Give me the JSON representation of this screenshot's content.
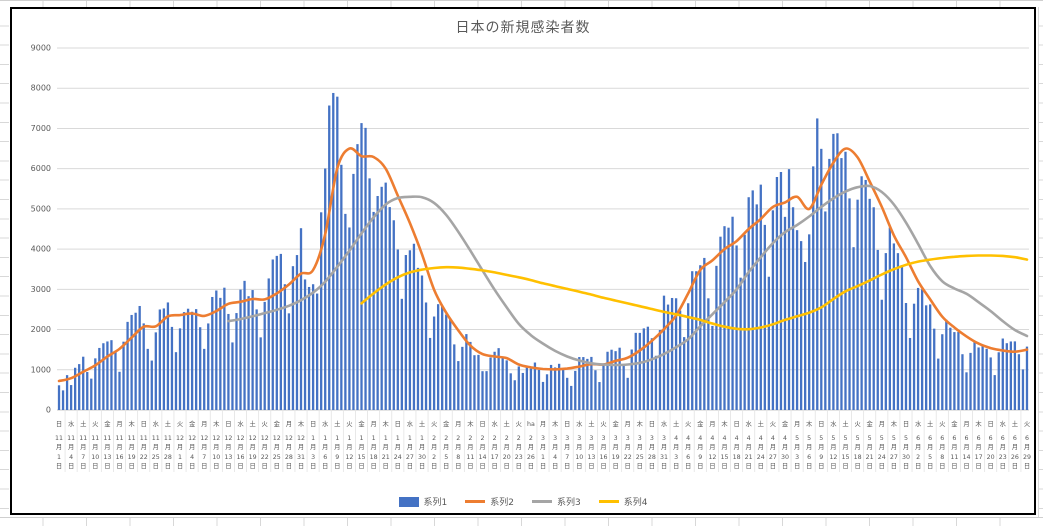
{
  "chart_data": {
    "type": "combo-bar-line",
    "title": "日本の新規感染者数",
    "ylim": [
      0,
      9000
    ],
    "y_step": 1000,
    "grid": true,
    "legend_position": "bottom",
    "y_tick_labels": [
      "0",
      "1000",
      "2000",
      "3000",
      "4000",
      "5000",
      "6000",
      "7000",
      "8000",
      "9000"
    ],
    "x_start": "2020年11月1日(日)",
    "x_end": "2021年6月29日(火)",
    "x_label_interval_days": 3,
    "x_ticks": {
      "weekdays": [
        "日",
        "水",
        "土",
        "火",
        "金",
        "月",
        "木",
        "日",
        "水",
        "土",
        "火",
        "金",
        "月",
        "木",
        "日",
        "水",
        "土",
        "火",
        "金",
        "月",
        "木",
        "日",
        "水",
        "土",
        "火",
        "金",
        "月",
        "木",
        "日",
        "水",
        "土",
        "火",
        "金",
        "月",
        "木",
        "日",
        "水",
        "土",
        "火",
        "ha",
        "月",
        "木",
        "日",
        "水",
        "土",
        "火",
        "金",
        "月",
        "木",
        "日",
        "水",
        "土",
        "火",
        "金",
        "月",
        "木",
        "日",
        "水",
        "土",
        "火",
        "金",
        "月",
        "木",
        "日",
        "水",
        "土",
        "火",
        "金",
        "月",
        "木",
        "日",
        "水",
        "土",
        "火",
        "金",
        "月",
        "木",
        "日",
        "水",
        "土",
        "火"
      ],
      "months": [
        11,
        11,
        11,
        11,
        11,
        11,
        11,
        11,
        11,
        11,
        12,
        12,
        12,
        12,
        12,
        12,
        12,
        12,
        12,
        12,
        12,
        1,
        1,
        1,
        1,
        1,
        1,
        1,
        1,
        1,
        1,
        2,
        2,
        2,
        2,
        2,
        2,
        2,
        2,
        2,
        3,
        3,
        3,
        3,
        3,
        3,
        3,
        3,
        3,
        3,
        3,
        4,
        4,
        4,
        4,
        4,
        4,
        4,
        4,
        4,
        4,
        5,
        5,
        5,
        5,
        5,
        5,
        5,
        5,
        5,
        5,
        6,
        6,
        6,
        6,
        6,
        6,
        6,
        6,
        6,
        6
      ],
      "days": [
        1,
        4,
        7,
        10,
        13,
        16,
        19,
        22,
        25,
        28,
        1,
        4,
        7,
        10,
        13,
        16,
        19,
        22,
        25,
        28,
        31,
        3,
        6,
        9,
        12,
        15,
        18,
        21,
        24,
        27,
        30,
        2,
        5,
        8,
        11,
        14,
        17,
        20,
        23,
        26,
        1,
        4,
        7,
        10,
        13,
        16,
        19,
        22,
        25,
        28,
        31,
        3,
        6,
        9,
        12,
        15,
        18,
        21,
        24,
        27,
        30,
        3,
        6,
        9,
        12,
        15,
        18,
        21,
        24,
        27,
        30,
        2,
        5,
        8,
        11,
        14,
        17,
        20,
        23,
        26,
        29
      ],
      "month_suffix": "月",
      "day_suffix": "日"
    },
    "series": [
      {
        "name": "系列1",
        "type": "bar",
        "color": "#4472C4",
        "x_step_days": 1,
        "values": [
          614,
          488,
          867,
          620,
          1050,
          1141,
          1325,
          944,
          780,
          1284,
          1543,
          1660,
          1704,
          1736,
          1441,
          950,
          1699,
          2191,
          2363,
          2418,
          2586,
          2153,
          1520,
          1229,
          1930,
          2499,
          2525,
          2674,
          2066,
          1438,
          2030,
          2434,
          2518,
          2442,
          2508,
          2058,
          1520,
          2152,
          2810,
          2971,
          2788,
          3041,
          2388,
          1680,
          2410,
          2993,
          3211,
          2829,
          2982,
          2501,
          1806,
          2688,
          3271,
          3742,
          3832,
          3881,
          3127,
          2403,
          3576,
          3852,
          4520,
          3246,
          3059,
          3127,
          2895,
          4915,
          6004,
          7570,
          7882,
          7790,
          6096,
          4876,
          4538,
          5870,
          6610,
          7133,
          7014,
          5759,
          4925,
          5320,
          5549,
          5653,
          5045,
          4717,
          3990,
          2764,
          3853,
          3971,
          4133,
          3534,
          3344,
          2673,
          1792,
          2324,
          2631,
          2576,
          2372,
          2279,
          1631,
          1216,
          1570,
          1887,
          1693,
          1362,
          1371,
          965,
          966,
          1304,
          1448,
          1538,
          1301,
          1234,
          912,
          740,
          1083,
          921,
          1076,
          1029,
          1180,
          999,
          698,
          888,
          1121,
          1058,
          1148,
          1040,
          800,
          599,
          972,
          1317,
          1316,
          1271,
          1320,
          989,
          695,
          1133,
          1448,
          1499,
          1463,
          1549,
          1121,
          800,
          1504,
          1918,
          1917,
          2029,
          2071,
          1785,
          1348,
          1988,
          2843,
          2621,
          2785,
          2778,
          2472,
          1812,
          2654,
          3451,
          3450,
          3600,
          3781,
          2777,
          2091,
          3584,
          4309,
          4570,
          4533,
          4805,
          4091,
          3290,
          4358,
          5290,
          5460,
          5112,
          5603,
          4602,
          3313,
          4965,
          5793,
          5917,
          4802,
          5988,
          5041,
          4471,
          4199,
          3680,
          4367,
          6057,
          7249,
          6493,
          4936,
          6243,
          6865,
          6880,
          6263,
          6421,
          5261,
          4048,
          5229,
          5811,
          5719,
          5250,
          5040,
          3980,
          2741,
          3901,
          4536,
          4141,
          3900,
          3601,
          2660,
          1791,
          2643,
          3035,
          3000,
          2602,
          2625,
          2022,
          1278,
          1884,
          2242,
          2046,
          1937,
          1942,
          1387,
          937,
          1420,
          1709,
          1555,
          1605,
          1521,
          1307,
          868,
          1435,
          1777,
          1661,
          1704,
          1706,
          1387,
          1009,
          1576
        ]
      },
      {
        "name": "系列2",
        "type": "line",
        "color": "#ED7D31",
        "x_step_days": 3,
        "values": [
          720,
          790,
          950,
          1110,
          1330,
          1520,
          1800,
          2070,
          2080,
          2330,
          2360,
          2400,
          2340,
          2460,
          2640,
          2690,
          2760,
          2750,
          2900,
          3120,
          3390,
          3480,
          4370,
          6010,
          6500,
          6310,
          6290,
          6000,
          5330,
          4650,
          3870,
          2990,
          2420,
          1980,
          1600,
          1390,
          1330,
          1290,
          1130,
          1060,
          1020,
          1010,
          1030,
          1080,
          1140,
          1130,
          1220,
          1300,
          1480,
          1720,
          2010,
          2350,
          2900,
          3480,
          3720,
          4000,
          4200,
          4500,
          4750,
          5050,
          5160,
          5300,
          5000,
          5600,
          6150,
          6500,
          6280,
          5680,
          5050,
          4340,
          3800,
          3200,
          2750,
          2320,
          2050,
          1830,
          1650,
          1540,
          1480,
          1450,
          1500
        ]
      },
      {
        "name": "系列3",
        "type": "line",
        "color": "#A5A5A5",
        "x_step_days": 3,
        "values": [
          null,
          null,
          null,
          null,
          null,
          null,
          null,
          null,
          null,
          null,
          null,
          null,
          null,
          null,
          2210,
          2260,
          2330,
          2410,
          2490,
          2590,
          2730,
          2920,
          3190,
          3560,
          3960,
          4390,
          4790,
          5110,
          5270,
          5300,
          5290,
          5150,
          4850,
          4430,
          3960,
          3470,
          2990,
          2550,
          2140,
          1860,
          1650,
          1470,
          1330,
          1230,
          1160,
          1130,
          1120,
          1130,
          1170,
          1260,
          1390,
          1560,
          1760,
          2080,
          2380,
          2680,
          3000,
          3430,
          3800,
          4150,
          4420,
          4600,
          4810,
          5050,
          5260,
          5430,
          5540,
          5570,
          5420,
          5110,
          4660,
          4130,
          3580,
          3200,
          3020,
          2890,
          2680,
          2460,
          2210,
          1990,
          1840
        ]
      },
      {
        "name": "系列4",
        "type": "line",
        "color": "#FFC000",
        "x_step_days": 3,
        "values": [
          null,
          null,
          null,
          null,
          null,
          null,
          null,
          null,
          null,
          null,
          null,
          null,
          null,
          null,
          null,
          null,
          null,
          null,
          null,
          null,
          null,
          null,
          null,
          null,
          null,
          2650,
          2900,
          3120,
          3300,
          3420,
          3490,
          3530,
          3550,
          3540,
          3510,
          3470,
          3420,
          3360,
          3300,
          3230,
          3150,
          3080,
          3010,
          2940,
          2870,
          2790,
          2720,
          2650,
          2580,
          2510,
          2440,
          2380,
          2310,
          2240,
          2150,
          2070,
          2020,
          2010,
          2050,
          2130,
          2240,
          2330,
          2420,
          2550,
          2760,
          2950,
          3080,
          3220,
          3370,
          3500,
          3610,
          3690,
          3740,
          3780,
          3810,
          3830,
          3840,
          3840,
          3830,
          3800,
          3740
        ]
      }
    ],
    "colors": {
      "bar": "#4472C4",
      "line2": "#ED7D31",
      "line3": "#A5A5A5",
      "line4": "#FFC000",
      "gridline": "#D9D9D9",
      "axis_line": "#C9C9C9",
      "axis_text": "#595959",
      "title_text": "#595959",
      "chart_border": "#000000"
    }
  }
}
